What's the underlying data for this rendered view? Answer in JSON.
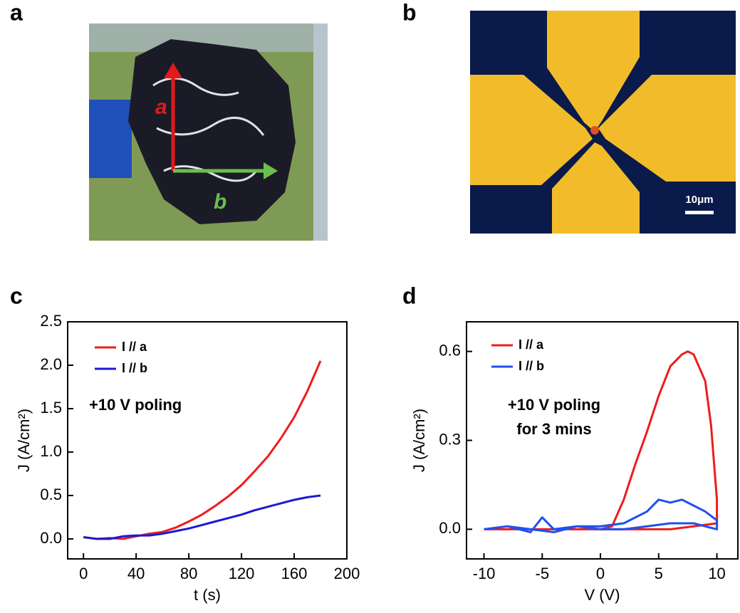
{
  "panels": {
    "labels": [
      "a",
      "b",
      "c",
      "d"
    ],
    "photo_a": {
      "arrow_labels": [
        "a",
        "b"
      ]
    },
    "photo_b": {
      "scale_bar": "10μm"
    }
  },
  "chart_data": [
    {
      "type": "line",
      "xlabel": "t (s)",
      "ylabel": "J (A/cm²)",
      "annotation": [
        "+10 V poling"
      ],
      "xlim": [
        -12,
        200
      ],
      "ylim": [
        -0.23,
        2.5
      ],
      "xticks": [
        0,
        40,
        80,
        120,
        160,
        200
      ],
      "yticks": [
        {
          "value": 0,
          "label": "0.0"
        },
        0.5,
        {
          "value": 1,
          "label": "1.0"
        },
        1.5,
        {
          "value": 2,
          "label": "2.0"
        },
        2.5
      ],
      "series": [
        {
          "name": "I // a",
          "color": "#ee1c1c",
          "x": [
            0,
            10,
            20,
            30,
            40,
            50,
            60,
            70,
            80,
            90,
            100,
            110,
            120,
            130,
            140,
            150,
            160,
            170,
            180
          ],
          "values": [
            0.02,
            0.0,
            0.01,
            0.0,
            0.03,
            0.06,
            0.08,
            0.13,
            0.2,
            0.28,
            0.38,
            0.49,
            0.62,
            0.78,
            0.95,
            1.16,
            1.4,
            1.7,
            2.05
          ]
        },
        {
          "name": "I // b",
          "color": "#1a1ad4",
          "x": [
            0,
            10,
            20,
            30,
            40,
            50,
            60,
            70,
            80,
            90,
            100,
            110,
            120,
            130,
            140,
            150,
            160,
            170,
            180
          ],
          "values": [
            0.02,
            0.0,
            0.0,
            0.03,
            0.04,
            0.04,
            0.06,
            0.09,
            0.12,
            0.16,
            0.2,
            0.24,
            0.28,
            0.33,
            0.37,
            0.41,
            0.45,
            0.48,
            0.5
          ]
        }
      ]
    },
    {
      "type": "line",
      "xlabel": "V (V)",
      "ylabel": "J (A/cm²)",
      "annotation": [
        "+10 V poling",
        "for 3 mins"
      ],
      "xlim": [
        -11.5,
        11.8
      ],
      "ylim": [
        -0.1,
        0.7
      ],
      "xticks": [
        -10,
        -5,
        0,
        5,
        10
      ],
      "yticks": [
        {
          "value": 0,
          "label": "0.0"
        },
        0.3,
        0.6
      ],
      "series": [
        {
          "name": "I // a",
          "color": "#ee1c1c",
          "x": [
            -10,
            -8,
            -6,
            -4,
            -2,
            0,
            1,
            2,
            3,
            4,
            5,
            6,
            7,
            7.5,
            8,
            9,
            9.5,
            10,
            10,
            8,
            6,
            4,
            2,
            0,
            -2,
            -4,
            -6,
            -8,
            -10
          ],
          "values": [
            0,
            0,
            0,
            0,
            0,
            0,
            0.01,
            0.1,
            0.22,
            0.33,
            0.45,
            0.55,
            0.59,
            0.6,
            0.59,
            0.5,
            0.35,
            0.1,
            0.02,
            0.01,
            0,
            0,
            0,
            0,
            0,
            0,
            0,
            0,
            0
          ]
        },
        {
          "name": "I // b",
          "color": "#2050f0",
          "x": [
            -10,
            -8,
            -6,
            -5,
            -4,
            -2,
            0,
            2,
            4,
            5,
            6,
            7,
            8,
            9,
            10,
            10,
            8,
            6,
            4,
            2,
            0,
            -2,
            -4,
            -6,
            -8,
            -10
          ],
          "values": [
            0,
            0.01,
            -0.01,
            0.04,
            0,
            0.01,
            0.01,
            0.02,
            0.06,
            0.1,
            0.09,
            0.1,
            0.08,
            0.06,
            0.03,
            0,
            0.02,
            0.02,
            0.01,
            0,
            0,
            0.01,
            -0.01,
            0,
            0.01,
            0
          ]
        }
      ]
    }
  ]
}
